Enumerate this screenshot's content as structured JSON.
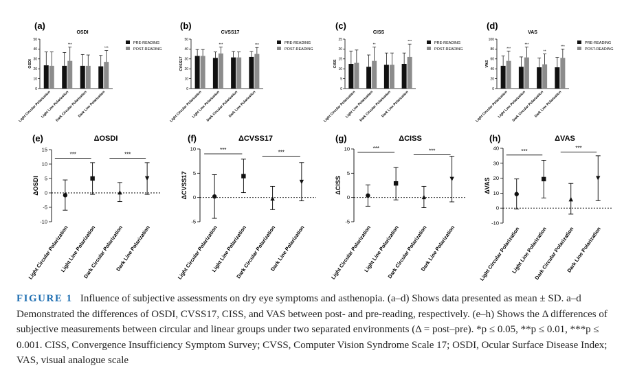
{
  "chart_data": [
    {
      "panel": "(a)",
      "title": "OSDI",
      "type": "bar",
      "ylabel": "OSDI",
      "ylim": [
        0,
        50
      ],
      "yticks": [
        0,
        10,
        20,
        30,
        40,
        50
      ],
      "categories": [
        "Light Circular Polarization",
        "Light Line Polarization",
        "Dark Circular Polarization",
        "Dark Line Polarization"
      ],
      "series": [
        {
          "name": "PRE-READING",
          "color": "#111111",
          "values": [
            23.5,
            23,
            23,
            22.5
          ],
          "sd": [
            13.5,
            13.5,
            11.5,
            11
          ]
        },
        {
          "name": "POST-READING",
          "color": "#8c8c8c",
          "values": [
            23,
            28,
            23,
            27
          ],
          "sd": [
            14,
            14,
            11,
            11.5
          ]
        }
      ],
      "significance": [
        "",
        "***",
        "",
        "***"
      ]
    },
    {
      "panel": "(b)",
      "title": "CVSS17",
      "type": "bar",
      "ylabel": "CVSS17",
      "ylim": [
        0,
        50
      ],
      "yticks": [
        0,
        10,
        20,
        30,
        40,
        50
      ],
      "categories": [
        "Light Circular Polarization",
        "Light Line Polarization",
        "Dark Circular Polarization",
        "Dark Line Polarization"
      ],
      "series": [
        {
          "name": "PRE-READING",
          "color": "#111111",
          "values": [
            33,
            31,
            31.5,
            32
          ],
          "sd": [
            6.5,
            6,
            6,
            5.5
          ]
        },
        {
          "name": "POST-READING",
          "color": "#8c8c8c",
          "values": [
            33,
            35.5,
            31.5,
            35
          ],
          "sd": [
            6.5,
            6.5,
            5.5,
            6.5
          ]
        }
      ],
      "significance": [
        "",
        "***",
        "",
        "***"
      ]
    },
    {
      "panel": "(c)",
      "title": "CISS",
      "type": "bar",
      "ylabel": "CISS",
      "ylim": [
        0,
        25
      ],
      "yticks": [
        0,
        5,
        10,
        15,
        20,
        25
      ],
      "categories": [
        "Light Circular Polarization",
        "Light Line Polarization",
        "Dark Circular Polarization",
        "Dark Line Polarization"
      ],
      "series": [
        {
          "name": "PRE-READING",
          "color": "#111111",
          "values": [
            12.5,
            11,
            12,
            12.5
          ],
          "sd": [
            6.5,
            6,
            6,
            5.5
          ]
        },
        {
          "name": "POST-READING",
          "color": "#8c8c8c",
          "values": [
            13,
            14,
            12,
            16
          ],
          "sd": [
            6.5,
            7,
            6,
            6.5
          ]
        }
      ],
      "significance": [
        "",
        "**",
        "",
        "***"
      ]
    },
    {
      "panel": "(d)",
      "title": "VAS",
      "type": "bar",
      "ylabel": "VAS",
      "ylim": [
        0,
        100
      ],
      "yticks": [
        0,
        20,
        40,
        60,
        80,
        100
      ],
      "categories": [
        "Light Circular Polarization",
        "Light Line Polarization",
        "Dark Circular Polarization",
        "Dark Line Polarization"
      ],
      "series": [
        {
          "name": "PRE-READING",
          "color": "#111111",
          "values": [
            46,
            44,
            43,
            43
          ],
          "sd": [
            20,
            20,
            19,
            20
          ]
        },
        {
          "name": "POST-READING",
          "color": "#8c8c8c",
          "values": [
            56,
            63,
            49,
            62
          ],
          "sd": [
            20,
            21,
            21,
            18
          ]
        }
      ],
      "significance": [
        "***",
        "***",
        "**",
        "***"
      ]
    },
    {
      "panel": "(e)",
      "title": "ΔOSDI",
      "type": "scatter",
      "ylabel": "ΔOSDI",
      "ylim": [
        -10,
        15
      ],
      "yticks": [
        -10,
        -5,
        0,
        5,
        10,
        15
      ],
      "categories": [
        "Light Circular Polarization",
        "Light Line Polarization",
        "Dark Circular Polarization",
        "Dark Line Polarization"
      ],
      "points": [
        {
          "mean": -0.8,
          "low": -6,
          "high": 4.5,
          "marker": "circle"
        },
        {
          "mean": 5,
          "low": -0.5,
          "high": 10.5,
          "marker": "square"
        },
        {
          "mean": 0.2,
          "low": -3,
          "high": 3.6,
          "marker": "triangle-up"
        },
        {
          "mean": 5,
          "low": -0.5,
          "high": 10.5,
          "marker": "triangle-down"
        }
      ],
      "significance": [
        {
          "label": "***",
          "y": 12
        },
        {
          "label": "***",
          "y": 12
        }
      ]
    },
    {
      "panel": "(f)",
      "title": "ΔCVSS17",
      "type": "scatter",
      "ylabel": "ΔCVSS17",
      "ylim": [
        -5,
        10
      ],
      "yticks": [
        -5,
        0,
        5,
        10
      ],
      "categories": [
        "Light Circular Polarization",
        "Light Line Polarization",
        "Dark Circular Polarization",
        "Dark Line Polarization"
      ],
      "points": [
        {
          "mean": 0.2,
          "low": -4.3,
          "high": 4.7,
          "marker": "circle"
        },
        {
          "mean": 4.4,
          "low": 1,
          "high": 7.9,
          "marker": "square"
        },
        {
          "mean": -0.2,
          "low": -2.5,
          "high": 2.3,
          "marker": "triangle-up"
        },
        {
          "mean": 3.2,
          "low": -0.7,
          "high": 7.2,
          "marker": "triangle-down"
        }
      ],
      "significance": [
        {
          "label": "***",
          "y": 9
        },
        {
          "label": "***",
          "y": 8.5
        }
      ]
    },
    {
      "panel": "(g)",
      "title": "ΔCISS",
      "type": "scatter",
      "ylabel": "ΔCISS",
      "ylim": [
        -5,
        10
      ],
      "yticks": [
        -5,
        0,
        5,
        10
      ],
      "categories": [
        "Light Circular Polarization",
        "Light Line Polarization",
        "Dark Circular Polarization",
        "Dark Line Polarization"
      ],
      "points": [
        {
          "mean": 0.4,
          "low": -1.8,
          "high": 2.6,
          "marker": "circle"
        },
        {
          "mean": 2.9,
          "low": -0.5,
          "high": 6.2,
          "marker": "square"
        },
        {
          "mean": 0.1,
          "low": -2.1,
          "high": 2.3,
          "marker": "triangle-up"
        },
        {
          "mean": 3.8,
          "low": -0.9,
          "high": 8.5,
          "marker": "triangle-down"
        }
      ],
      "significance": [
        {
          "label": "***",
          "y": 9.3
        },
        {
          "label": "***",
          "y": 8.8
        }
      ]
    },
    {
      "panel": "(h)",
      "title": "ΔVAS",
      "type": "scatter",
      "ylabel": "ΔVAS",
      "ylim": [
        -10,
        40
      ],
      "yticks": [
        -10,
        0,
        10,
        20,
        30,
        40
      ],
      "categories": [
        "Light Circular Polarization",
        "Light Line Polarization",
        "Dark Circular Polarization",
        "Dark Line Polarization"
      ],
      "points": [
        {
          "mean": 9.4,
          "low": -0.6,
          "high": 19.5,
          "marker": "circle"
        },
        {
          "mean": 19.4,
          "low": 6.8,
          "high": 32,
          "marker": "square"
        },
        {
          "mean": 6,
          "low": -4,
          "high": 16.5,
          "marker": "triangle-up"
        },
        {
          "mean": 20,
          "low": 5,
          "high": 35,
          "marker": "triangle-down"
        }
      ],
      "significance": [
        {
          "label": "***",
          "y": 35.5
        },
        {
          "label": "***",
          "y": 37.5
        }
      ]
    }
  ],
  "caption": {
    "label": "FIGURE 1",
    "text": "Influence of subjective assessments on dry eye symptoms and asthenopia. (a–d) Shows data presented as mean ± SD. a–d Demonstrated the differences of OSDI, CVSS17, CISS, and VAS between post- and pre-reading, respectively. (e–h) Shows the Δ differences of subjective measurements between circular and linear groups under two separated environments (Δ = post–pre). *p ≤ 0.05, **p ≤ 0.01, ***p ≤ 0.001. CISS, Convergence Insufficiency Symptom Survey; CVSS, Computer Vision Syndrome Scale 17; OSDI, Ocular Surface Disease Index; VAS, visual analogue scale"
  }
}
